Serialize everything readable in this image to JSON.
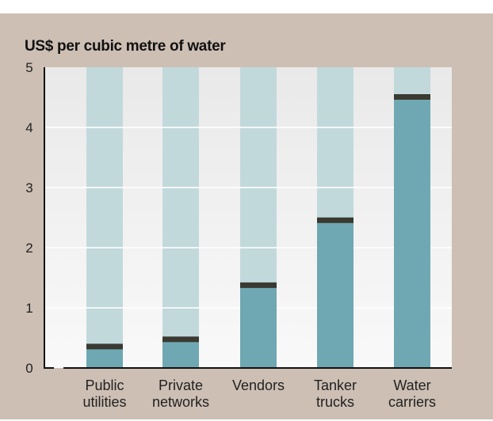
{
  "chart_data": {
    "type": "bar",
    "title": "US$ per cubic metre of water",
    "categories": [
      [
        "Public",
        "utilities"
      ],
      [
        "Private",
        "networks"
      ],
      [
        "Vendors"
      ],
      [
        "Tanker",
        "trucks"
      ],
      [
        "Water",
        "carriers"
      ]
    ],
    "values": [
      0.35,
      0.47,
      1.37,
      2.45,
      4.5
    ],
    "ylim": [
      0,
      5
    ],
    "yticks": [
      "0",
      "1",
      "2",
      "3",
      "4",
      "5"
    ],
    "grid": true,
    "colors": {
      "panel": "#cdbfb4",
      "background_bar": "#c2d9dc",
      "value_bar": "#6fa8b2",
      "marker": "#3a3a32"
    }
  }
}
